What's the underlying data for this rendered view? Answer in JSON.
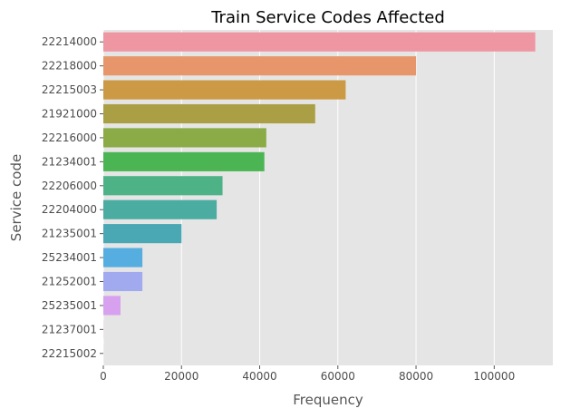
{
  "chart_data": {
    "type": "bar",
    "orientation": "horizontal",
    "title": "Train Service Codes Affected",
    "xlabel": "Frequency",
    "ylabel": "Service code",
    "categories": [
      "22214000",
      "22218000",
      "22215003",
      "21921000",
      "22216000",
      "21234001",
      "22206000",
      "22204000",
      "21235001",
      "25234001",
      "21252001",
      "25235001",
      "21237001",
      "22215002"
    ],
    "values": [
      110500,
      80000,
      62000,
      54200,
      41700,
      41200,
      30500,
      29000,
      20000,
      10000,
      10000,
      4400,
      30,
      20
    ],
    "xlim": [
      0,
      115000
    ],
    "xticks": [
      0,
      20000,
      40000,
      60000,
      80000,
      100000
    ],
    "xtick_labels": [
      "0",
      "20000",
      "40000",
      "60000",
      "80000",
      "100000"
    ],
    "grid": true,
    "colors": [
      "#ee96a1",
      "#e6966a",
      "#cc9a45",
      "#ab9f45",
      "#8aab45",
      "#4bb553",
      "#4db387",
      "#4baca2",
      "#4aa8b5",
      "#56aee0",
      "#a2aaef",
      "#d7a1ef",
      "#ec96e4",
      "#ef97c6"
    ],
    "plot_background": "#e5e5e5",
    "grid_color": "#ffffff"
  }
}
